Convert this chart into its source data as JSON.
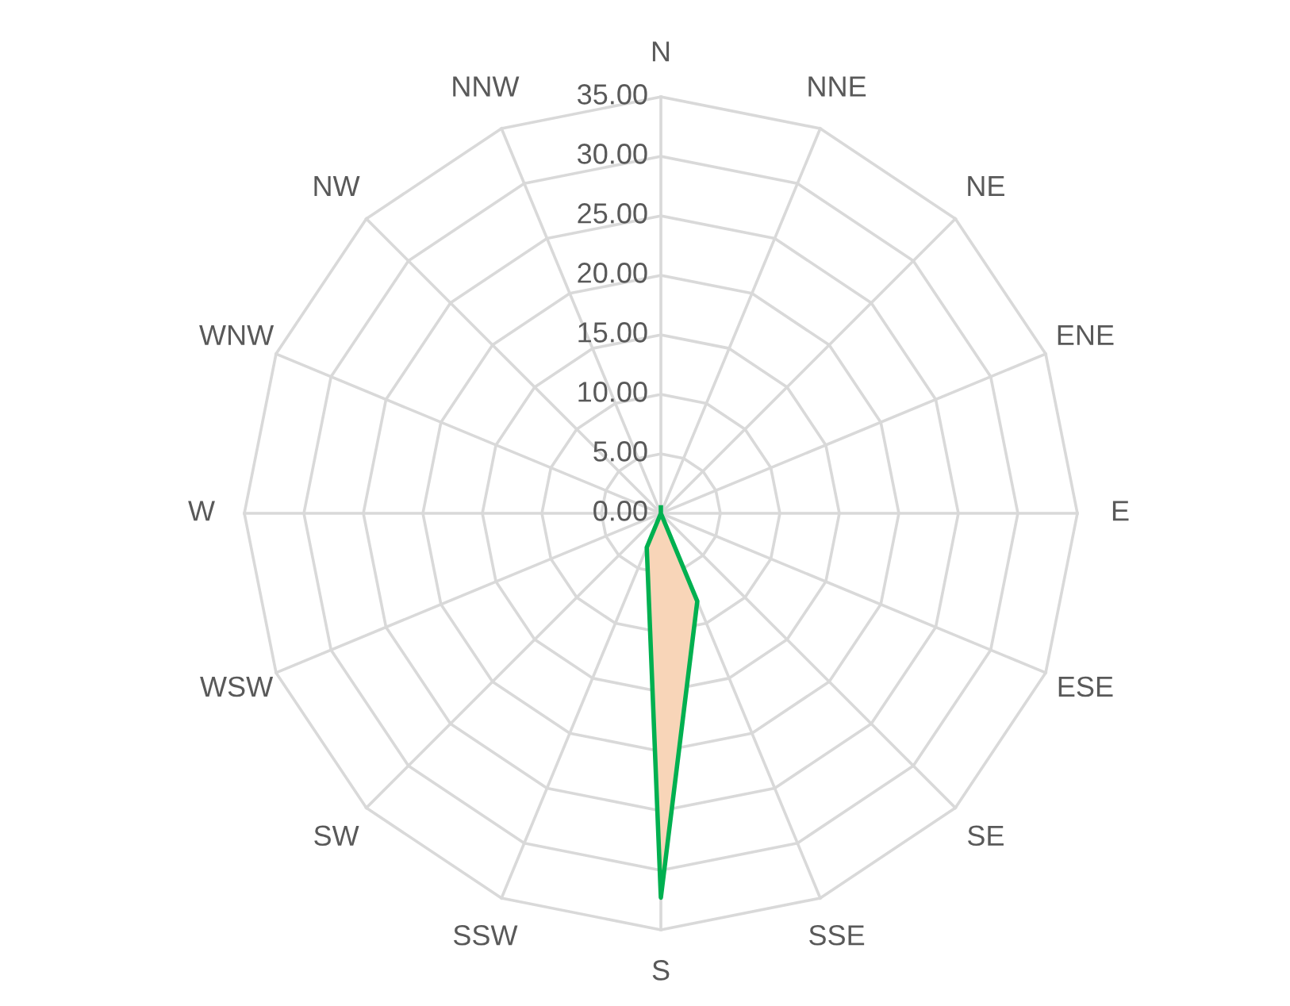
{
  "chart_data": {
    "type": "radar",
    "categories": [
      "N",
      "NNE",
      "NE",
      "ENE",
      "E",
      "ESE",
      "SE",
      "SSE",
      "S",
      "SSW",
      "SW",
      "WSW",
      "W",
      "WNW",
      "NW",
      "NNW"
    ],
    "series": [
      {
        "color": "#00b050",
        "values": [
          0.5,
          0,
          0,
          0,
          0,
          0,
          0,
          8,
          32.3,
          3.1,
          0,
          0,
          0,
          0,
          0,
          0
        ]
      }
    ],
    "ylim": [
      0,
      35
    ],
    "yticks": [
      {
        "value": 0,
        "label": "0.00"
      },
      {
        "value": 5,
        "label": "5.00"
      },
      {
        "value": 10,
        "label": "10.00"
      },
      {
        "value": 15,
        "label": "15.00"
      },
      {
        "value": 20,
        "label": "20.00"
      },
      {
        "value": 25,
        "label": "25.00"
      },
      {
        "value": 30,
        "label": "30.00"
      },
      {
        "value": 35,
        "label": "35.00"
      }
    ],
    "grid": true
  }
}
